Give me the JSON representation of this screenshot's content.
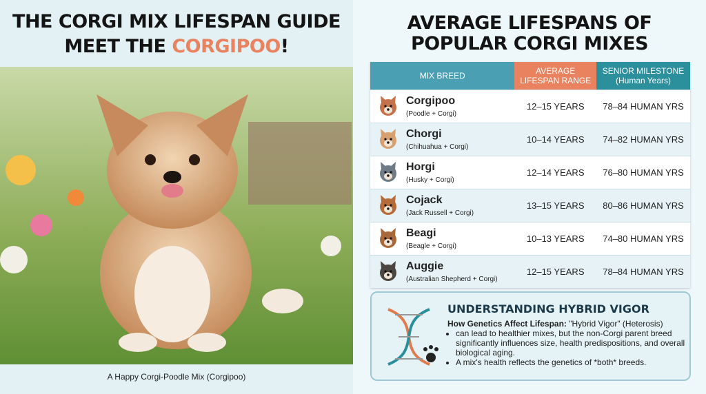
{
  "left": {
    "title_line1": "THE CORGI MIX LIFESPAN GUIDE",
    "title_line2_start": "MEET THE ",
    "title_highlight": "CORGIPOO",
    "title_line2_end": "!",
    "caption": "A Happy Corgi-Poodle Mix (Corgipoo)"
  },
  "right": {
    "title_line1": "AVERAGE LIFESPANS OF",
    "title_line2": "POPULAR CORGI MIXES",
    "table": {
      "headers": [
        [
          "MIX BREED"
        ],
        [
          "AVERAGE",
          "LIFESPAN RANGE"
        ],
        [
          "SENIOR MILESTONE",
          "(Human Years)"
        ]
      ],
      "rows": [
        [
          "Corgipoo",
          "(Poodle + Corgi)",
          "12–15 YEARS",
          "78–84 HUMAN YRS"
        ],
        [
          "Chorgi",
          "(Chihuahua + Corgi)",
          "10–14 YEARS",
          "74–82 HUMAN YRS"
        ],
        [
          "Horgi",
          "(Husky + Corgi)",
          "12–14 YEARS",
          "76–80 HUMAN YRS"
        ],
        [
          "Cojack",
          "(Jack Russell + Corgi)",
          "13–15 YEARS",
          "80–86 HUMAN YRS"
        ],
        [
          "Beagi",
          "(Beagle + Corgi)",
          "10–13 YEARS",
          "74–80 HUMAN YRS"
        ],
        [
          "Auggie",
          "(Australian Shepherd + Corgi)",
          "12–15 YEARS",
          "78–84 HUMAN YRS"
        ]
      ]
    },
    "vigor": {
      "title": "UNDERSTANDING HYBRID VIGOR",
      "lead": "How Genetics Affect Lifespan:",
      "lead_rest": " \"Hybrid Vigor\" (Heterosis)",
      "bullets": [
        "can lead to healthier mixes, but the non-Corgi parent breed significantly influences size, health predispositions, and overall biological aging.",
        "A mix's health reflects the genetics of *both* breeds."
      ]
    }
  }
}
